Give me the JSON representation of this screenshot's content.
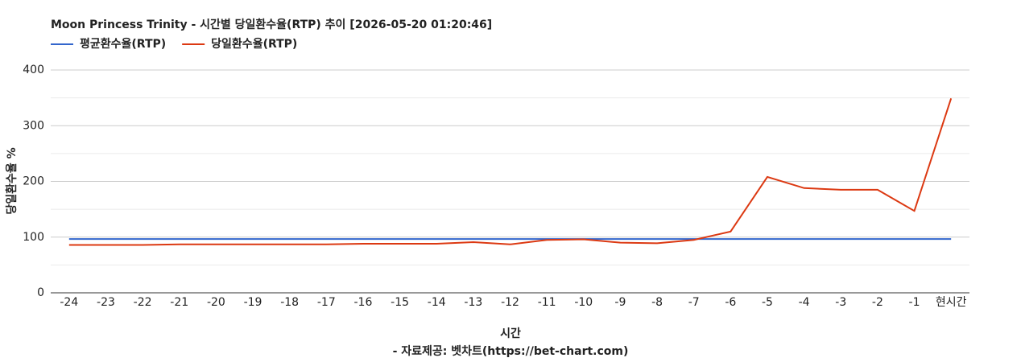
{
  "chart_data": {
    "type": "line",
    "title": "Moon Princess Trinity - 시간별 당일환수율(RTP) 추이 [2026-05-20 01:20:46]",
    "x_label": "시간",
    "y_label": "당일환수율 %",
    "footer": "- 자료제공: 벳차트(https://bet-chart.com)",
    "categories": [
      "-24",
      "-23",
      "-22",
      "-21",
      "-20",
      "-19",
      "-18",
      "-17",
      "-16",
      "-15",
      "-14",
      "-13",
      "-12",
      "-11",
      "-10",
      "-9",
      "-8",
      "-7",
      "-6",
      "-5",
      "-4",
      "-3",
      "-2",
      "-1",
      "현시간"
    ],
    "series": [
      {
        "name": "평균환수율(RTP)",
        "color": "#3366cc",
        "values": [
          96.5,
          96.5,
          96.5,
          96.5,
          96.5,
          96.5,
          96.5,
          96.5,
          96.5,
          96.5,
          96.5,
          96.5,
          96.5,
          96.5,
          96.5,
          96.5,
          96.5,
          96.5,
          96.5,
          96.5,
          96.5,
          96.5,
          96.5,
          96.5,
          96.5
        ]
      },
      {
        "name": "당일환수율(RTP)",
        "color": "#dc3912",
        "values": [
          86,
          86,
          86,
          87,
          87,
          87,
          87,
          87,
          88,
          88,
          88,
          91,
          87,
          95,
          96,
          90,
          89,
          95,
          110,
          208,
          188,
          185,
          185,
          147,
          349
        ]
      }
    ],
    "ylim": [
      0,
      400
    ],
    "yticks": [
      0,
      100,
      200,
      300,
      400
    ],
    "minor_yticks": [
      50,
      150,
      250,
      350
    ],
    "grid": true,
    "legend": "top-left"
  }
}
